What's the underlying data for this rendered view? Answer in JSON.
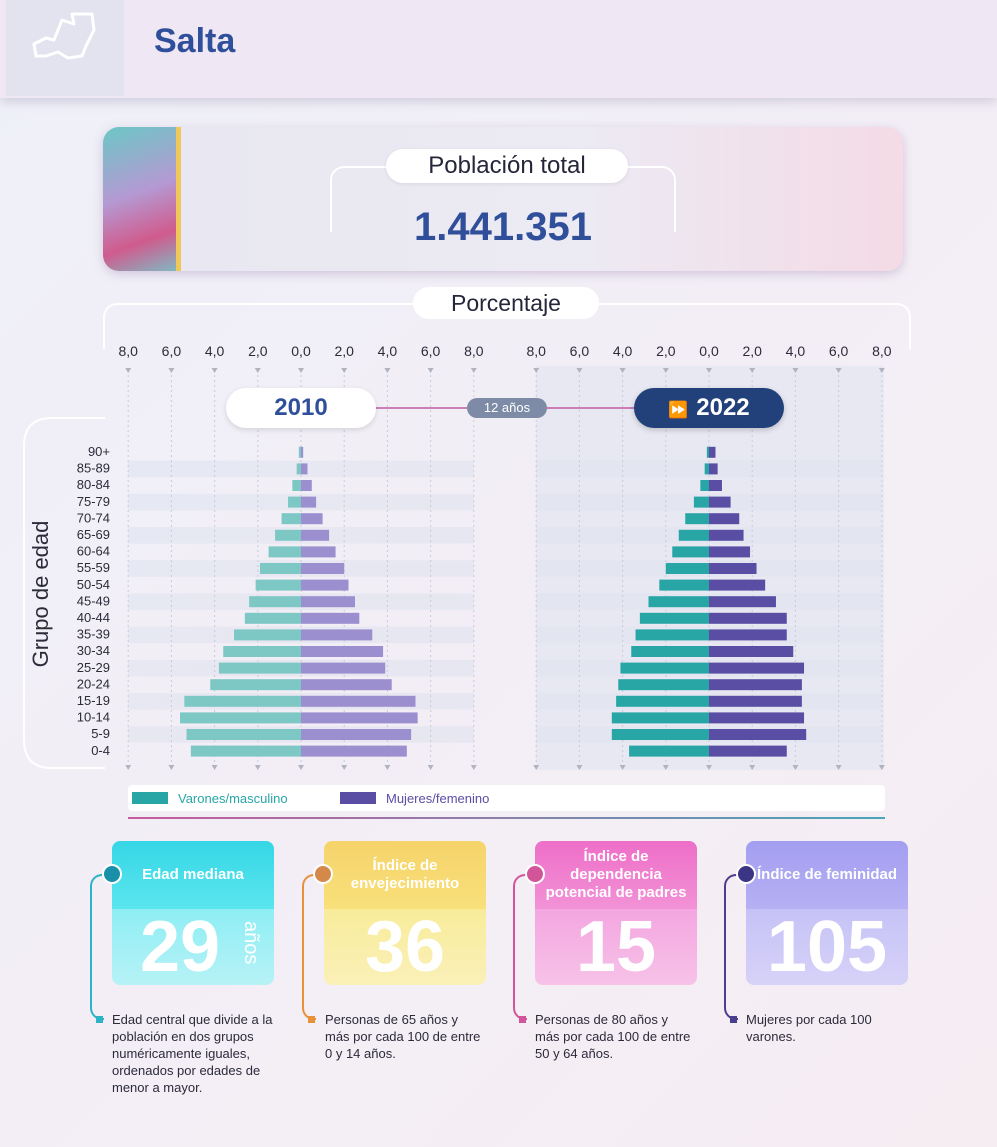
{
  "header": {
    "title": "Salta"
  },
  "population": {
    "label": "Población total",
    "value": "1.441.351"
  },
  "percent_label": "Porcentaje",
  "years": {
    "left": "2010",
    "right": "2022",
    "gap": "12 años"
  },
  "y_axis_label": "Grupo de edad",
  "legend": {
    "male": "Varones/masculino",
    "female": "Mujeres/femenino"
  },
  "colors": {
    "male_2010": "#7dc7c4",
    "female_2010": "#9c8fd0",
    "male_2022": "#28a6a6",
    "female_2022": "#5a4ea4"
  },
  "chart_data": [
    {
      "type": "bar",
      "title": "2010",
      "orientation": "horizontal population pyramid",
      "categories": [
        "90+",
        "85-89",
        "80-84",
        "75-79",
        "70-74",
        "65-69",
        "60-64",
        "55-59",
        "50-54",
        "45-49",
        "40-44",
        "35-39",
        "30-34",
        "25-29",
        "20-24",
        "15-19",
        "10-14",
        "5-9",
        "0-4"
      ],
      "series": [
        {
          "name": "Varones/masculino",
          "values": [
            0.1,
            0.2,
            0.4,
            0.6,
            0.9,
            1.2,
            1.5,
            1.9,
            2.1,
            2.4,
            2.6,
            3.1,
            3.6,
            3.8,
            4.2,
            5.4,
            5.6,
            5.3,
            5.1
          ]
        },
        {
          "name": "Mujeres/femenino",
          "values": [
            0.1,
            0.3,
            0.5,
            0.7,
            1.0,
            1.3,
            1.6,
            2.0,
            2.2,
            2.5,
            2.7,
            3.3,
            3.8,
            3.9,
            4.2,
            5.3,
            5.4,
            5.1,
            4.9
          ]
        }
      ],
      "xlim": [
        -8,
        8
      ],
      "xticks": [
        "8,0",
        "6,0",
        "4,0",
        "2,0",
        "0,0",
        "2,0",
        "4,0",
        "6,0",
        "8,0"
      ],
      "ylabel": "Grupo de edad",
      "xlabel": "Porcentaje"
    },
    {
      "type": "bar",
      "title": "2022",
      "orientation": "horizontal population pyramid",
      "categories": [
        "90+",
        "85-89",
        "80-84",
        "75-79",
        "70-74",
        "65-69",
        "60-64",
        "55-59",
        "50-54",
        "45-49",
        "40-44",
        "35-39",
        "30-34",
        "25-29",
        "20-24",
        "15-19",
        "10-14",
        "5-9",
        "0-4"
      ],
      "series": [
        {
          "name": "Varones/masculino",
          "values": [
            0.1,
            0.2,
            0.4,
            0.7,
            1.1,
            1.4,
            1.7,
            2.0,
            2.3,
            2.8,
            3.2,
            3.4,
            3.6,
            4.1,
            4.2,
            4.3,
            4.5,
            4.5,
            3.7
          ]
        },
        {
          "name": "Mujeres/femenino",
          "values": [
            0.3,
            0.4,
            0.6,
            1.0,
            1.4,
            1.6,
            1.9,
            2.2,
            2.6,
            3.1,
            3.6,
            3.6,
            3.9,
            4.4,
            4.3,
            4.3,
            4.4,
            4.5,
            3.6
          ]
        }
      ],
      "xlim": [
        -8,
        8
      ],
      "xticks": [
        "8,0",
        "6,0",
        "4,0",
        "2,0",
        "0,0",
        "2,0",
        "4,0",
        "6,0",
        "8,0"
      ],
      "ylabel": "Grupo de edad",
      "xlabel": "Porcentaje"
    }
  ],
  "indicators": [
    {
      "title": "Edad mediana",
      "value": "29",
      "unit": "años",
      "desc": "Edad central que divide a la población en dos grupos numéricamente iguales, ordenados por edades de menor a mayor."
    },
    {
      "title": "Índice de envejecimiento",
      "value": "36",
      "unit": "",
      "desc": "Personas de 65 años y más por cada 100 de entre 0 y 14 años."
    },
    {
      "title": "Índice de dependencia potencial de padres",
      "value": "15",
      "unit": "",
      "desc": "Personas de 80 años y más por cada 100 de entre 50 y 64 años."
    },
    {
      "title": "Índice de feminidad",
      "value": "105",
      "unit": "",
      "desc": "Mujeres por cada 100 varones."
    }
  ]
}
